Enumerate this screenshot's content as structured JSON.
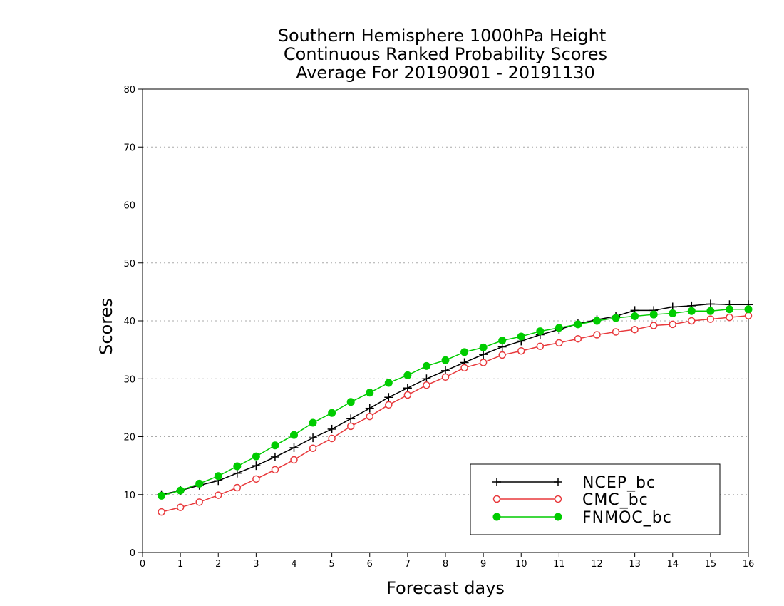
{
  "chart_data": {
    "type": "line",
    "title": [
      "Southern Hemisphere 1000hPa Height",
      "Continuous Ranked Probability Scores",
      "Average For 20190901 - 20191130"
    ],
    "xlabel": "Forecast days",
    "ylabel": "Scores",
    "xlim": [
      0,
      16
    ],
    "ylim": [
      0,
      80
    ],
    "xticks": [
      0,
      1,
      2,
      3,
      4,
      5,
      6,
      7,
      8,
      9,
      10,
      11,
      12,
      13,
      14,
      15,
      16
    ],
    "yticks": [
      0,
      10,
      20,
      30,
      40,
      50,
      60,
      70,
      80
    ],
    "grid": "horizontal-dotted",
    "legend_position": "bottom-right",
    "x": [
      0.5,
      1,
      1.5,
      2,
      2.5,
      3,
      3.5,
      4,
      4.5,
      5,
      5.5,
      6,
      6.5,
      7,
      7.5,
      8,
      8.5,
      9,
      9.5,
      10,
      10.5,
      11,
      11.5,
      12,
      12.5,
      13,
      13.5,
      14,
      14.5,
      15,
      15.5,
      16
    ],
    "series": [
      {
        "name": "NCEP_bc",
        "color": "#000000",
        "marker": "plus",
        "values": [
          10.0,
          10.7,
          11.6,
          12.4,
          13.7,
          15.0,
          16.5,
          18.1,
          19.8,
          21.3,
          23.1,
          24.9,
          26.8,
          28.4,
          30.0,
          31.4,
          32.8,
          34.2,
          35.5,
          36.5,
          37.6,
          38.5,
          39.5,
          40.2,
          40.8,
          41.8,
          41.8,
          42.4,
          42.6,
          42.9,
          42.8,
          42.8
        ]
      },
      {
        "name": "CMC_bc",
        "color": "#e8393c",
        "marker": "open-circle",
        "values": [
          7.0,
          7.8,
          8.7,
          9.9,
          11.2,
          12.7,
          14.3,
          16.0,
          18.0,
          19.7,
          21.8,
          23.5,
          25.5,
          27.2,
          28.9,
          30.3,
          31.9,
          32.8,
          34.1,
          34.8,
          35.6,
          36.2,
          36.9,
          37.6,
          38.1,
          38.5,
          39.2,
          39.4,
          40.0,
          40.3,
          40.6,
          40.9
        ]
      },
      {
        "name": "FNMOC_bc",
        "color": "#00cc00",
        "marker": "filled-circle",
        "values": [
          9.8,
          10.7,
          11.9,
          13.2,
          14.9,
          16.6,
          18.5,
          20.3,
          22.4,
          24.1,
          26.0,
          27.6,
          29.3,
          30.6,
          32.2,
          33.2,
          34.6,
          35.4,
          36.6,
          37.3,
          38.2,
          38.8,
          39.4,
          40.0,
          40.5,
          40.8,
          41.1,
          41.3,
          41.7,
          41.7,
          42.0,
          42.0
        ]
      }
    ]
  }
}
